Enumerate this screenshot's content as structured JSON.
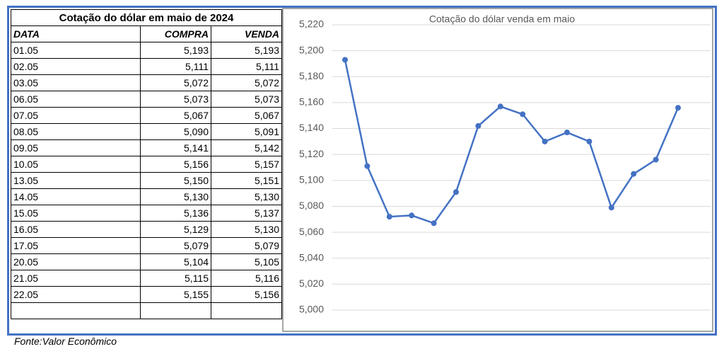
{
  "table": {
    "title": "Cotação do dólar em maio de 2024",
    "header": [
      "DATA",
      "COMPRA",
      "VENDA"
    ],
    "rows": [
      [
        "01.05",
        "5,193",
        "5,193"
      ],
      [
        "02.05",
        "5,111",
        "5,111"
      ],
      [
        "03.05",
        "5,072",
        "5,072"
      ],
      [
        "06.05",
        "5,073",
        "5,073"
      ],
      [
        "07.05",
        "5,067",
        "5,067"
      ],
      [
        "08.05",
        "5,090",
        "5,091"
      ],
      [
        "09.05",
        "5,141",
        "5,142"
      ],
      [
        "10.05",
        "5,156",
        "5,157"
      ],
      [
        "13.05",
        "5,150",
        "5,151"
      ],
      [
        "14.05",
        "5,130",
        "5,130"
      ],
      [
        "15.05",
        "5,136",
        "5,137"
      ],
      [
        "16.05",
        "5,129",
        "5,130"
      ],
      [
        "17.05",
        "5,079",
        "5,079"
      ],
      [
        "20.05",
        "5,104",
        "5,105"
      ],
      [
        "21.05",
        "5,115",
        "5,116"
      ],
      [
        "22.05",
        "5,155",
        "5,156"
      ]
    ]
  },
  "source": "Fonte:Valor Econômico",
  "chart_data": {
    "type": "line",
    "title": "Cotação do dólar venda em maio",
    "color": "#4472c4",
    "grid": true,
    "values": [
      5.193,
      5.111,
      5.072,
      5.073,
      5.067,
      5.091,
      5.142,
      5.157,
      5.151,
      5.13,
      5.137,
      5.13,
      5.079,
      5.105,
      5.116,
      5.156
    ],
    "ylim": [
      5.0,
      5.22
    ],
    "yticks": [
      {
        "value": 5.0,
        "label": "5,000"
      },
      {
        "value": 5.02,
        "label": "5,020"
      },
      {
        "value": 5.04,
        "label": "5,040"
      },
      {
        "value": 5.06,
        "label": "5,060"
      },
      {
        "value": 5.08,
        "label": "5,080"
      },
      {
        "value": 5.1,
        "label": "5,100"
      },
      {
        "value": 5.12,
        "label": "5,120"
      },
      {
        "value": 5.14,
        "label": "5,140"
      },
      {
        "value": 5.16,
        "label": "5,160"
      },
      {
        "value": 5.18,
        "label": "5,180"
      },
      {
        "value": 5.2,
        "label": "5,200"
      },
      {
        "value": 5.22,
        "label": "5,220"
      }
    ]
  }
}
